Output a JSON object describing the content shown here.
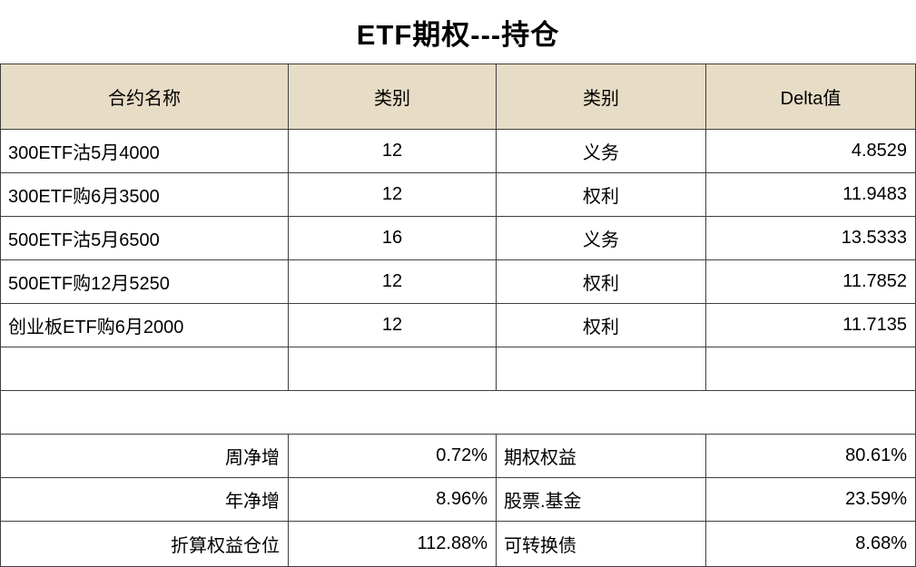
{
  "title": "ETF期权---持仓",
  "colors": {
    "header_bg": "#e7dcc5",
    "border": "#3f3f3f",
    "text": "#000000"
  },
  "table": {
    "headers": [
      "合约名称",
      "类别",
      "类别",
      "Delta值"
    ],
    "rows": [
      {
        "name": "300ETF沽5月4000",
        "qty": "12",
        "cat": "义务",
        "delta": "4.8529"
      },
      {
        "name": "300ETF购6月3500",
        "qty": "12",
        "cat": "权利",
        "delta": "11.9483"
      },
      {
        "name": "500ETF沽5月6500",
        "qty": "16",
        "cat": "义务",
        "delta": "13.5333"
      },
      {
        "name": "500ETF购12月5250",
        "qty": "12",
        "cat": "权利",
        "delta": "11.7852"
      },
      {
        "name": "创业板ETF购6月2000",
        "qty": "12",
        "cat": "权利",
        "delta": "11.7135"
      }
    ]
  },
  "summary": {
    "rows": [
      {
        "label": "周净增",
        "value": "0.72%",
        "label2": "期权权益",
        "value2": "80.61%"
      },
      {
        "label": "年净增",
        "value": "8.96%",
        "label2": "股票.基金",
        "value2": "23.59%"
      },
      {
        "label": "折算权益仓位",
        "value": "112.88%",
        "label2": "可转换债",
        "value2": "8.68%"
      }
    ]
  }
}
